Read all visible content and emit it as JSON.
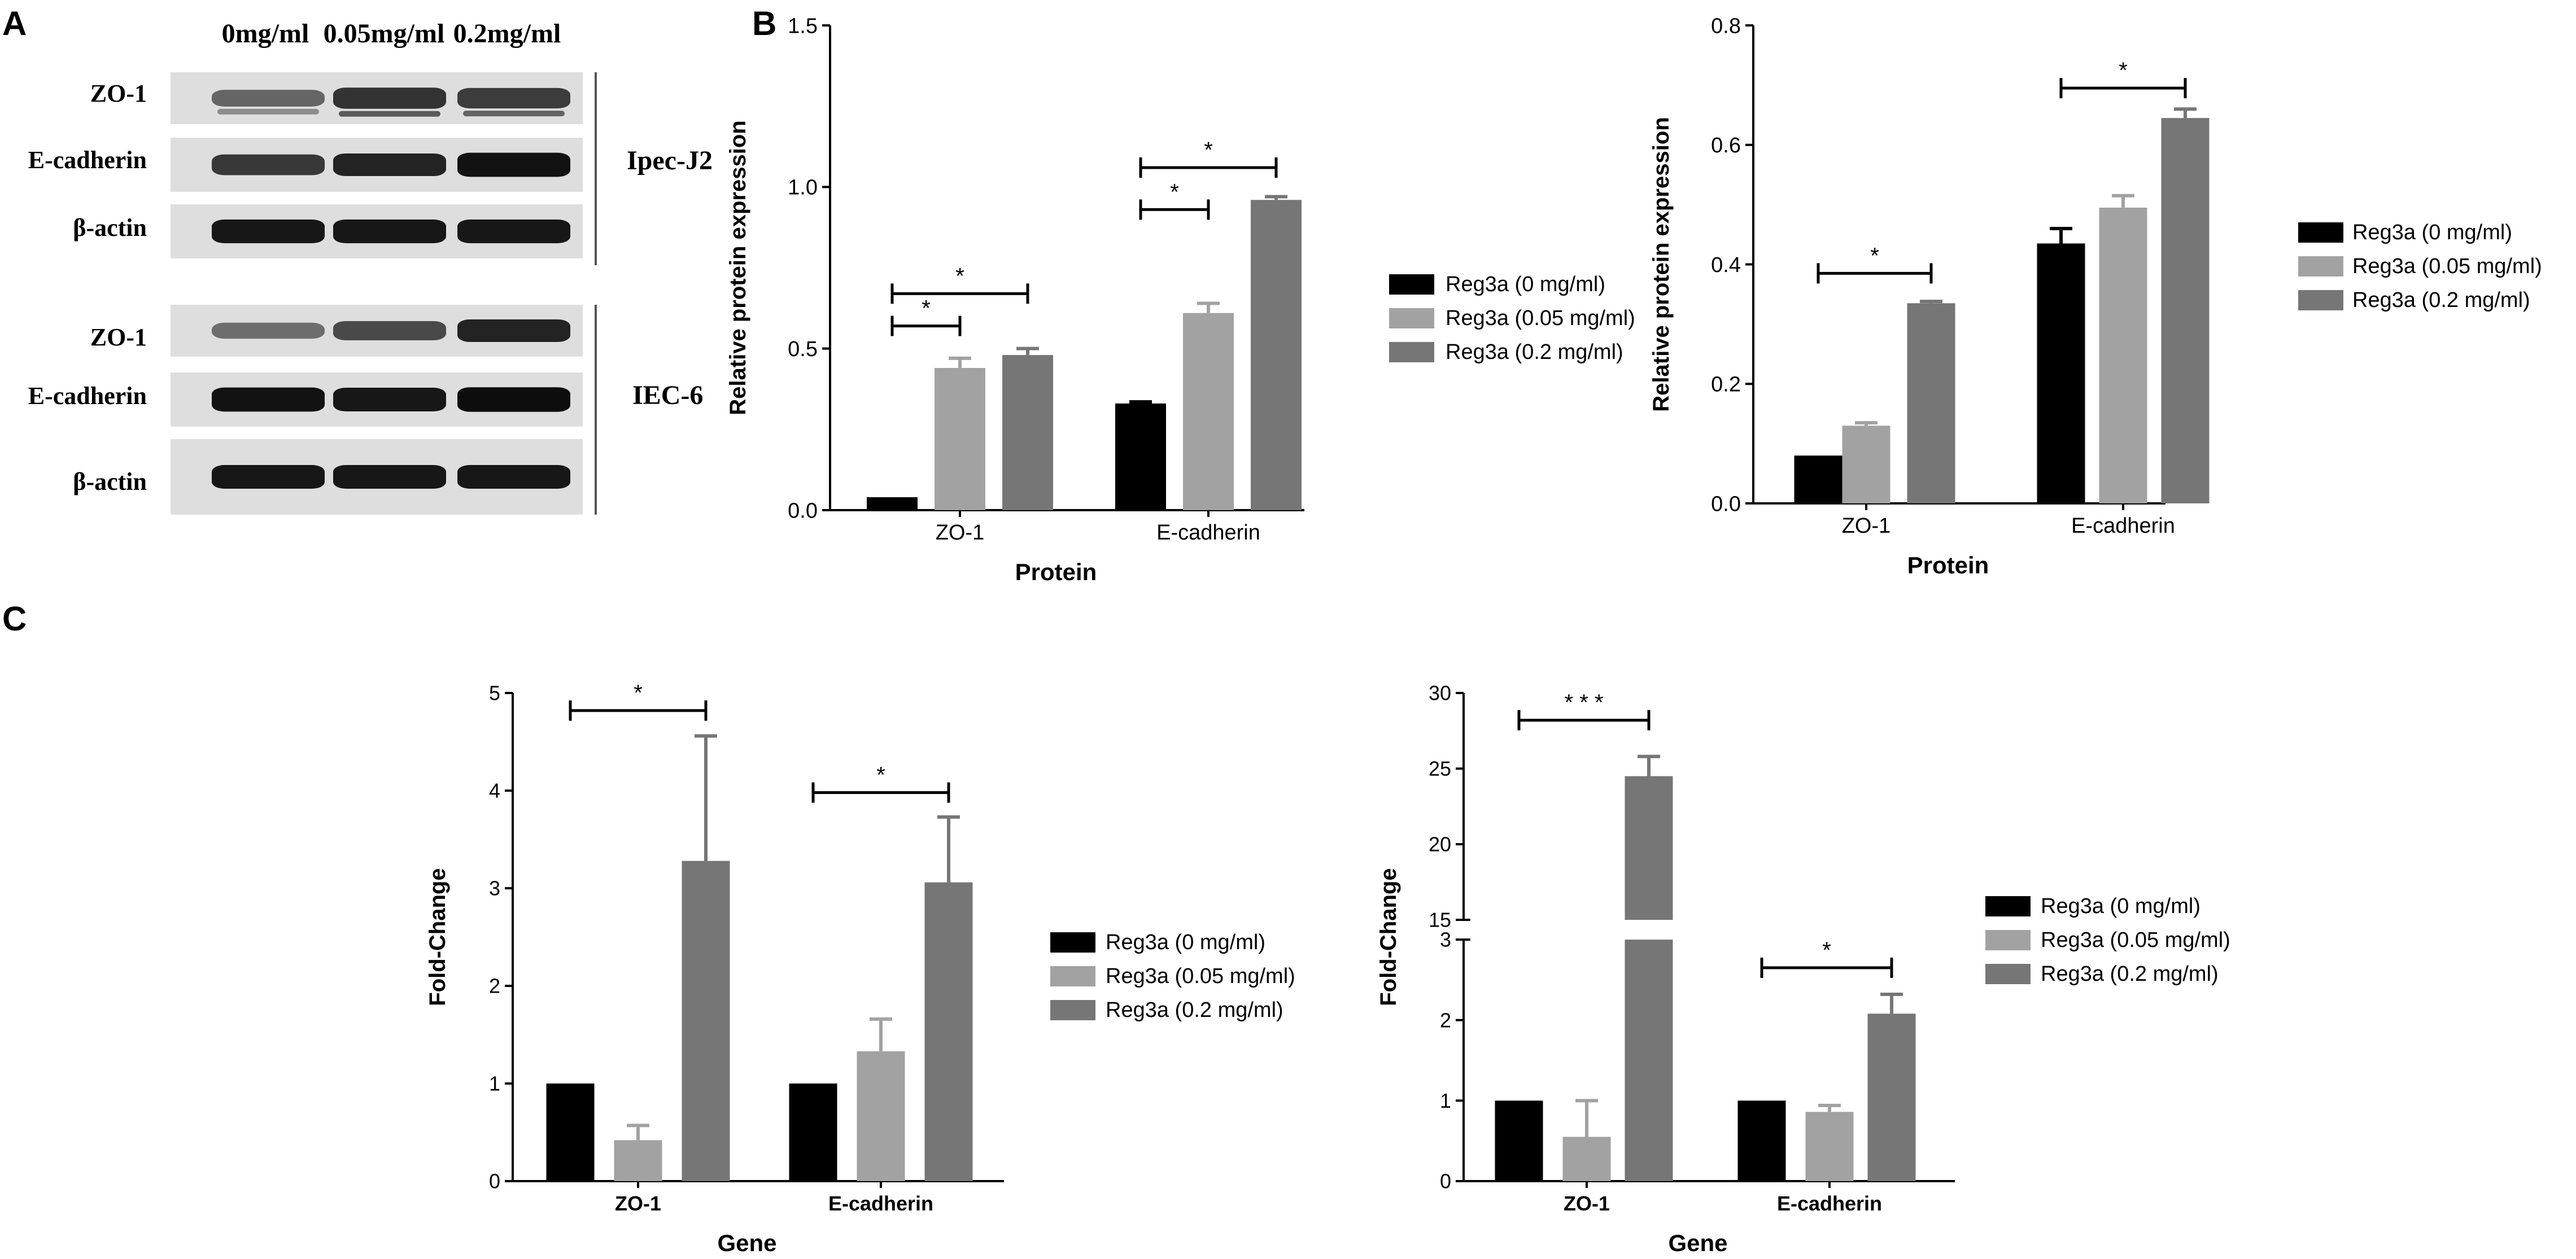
{
  "panels": {
    "A": {
      "letter": "A",
      "concentrations": [
        "0mg/ml",
        "0.05mg/ml",
        "0.2mg/ml"
      ],
      "blocks": [
        {
          "cell_line": "Ipec-J2",
          "rows": [
            {
              "label": "ZO-1",
              "intensity": [
                0.45,
                0.75,
                0.7
              ],
              "top_heavy": true
            },
            {
              "label": "E-cadherin",
              "intensity": [
                0.72,
                0.85,
                0.95
              ],
              "top_heavy": false
            },
            {
              "label": "β-actin",
              "intensity": [
                0.92,
                0.92,
                0.92
              ],
              "top_heavy": false
            }
          ]
        },
        {
          "cell_line": "IEC-6",
          "rows": [
            {
              "label": "ZO-1",
              "intensity": [
                0.4,
                0.62,
                0.85
              ],
              "top_heavy": false
            },
            {
              "label": "E-cadherin",
              "intensity": [
                0.95,
                0.92,
                0.98
              ],
              "top_heavy": false
            },
            {
              "label": "β-actin",
              "intensity": [
                0.92,
                0.92,
                0.92
              ],
              "top_heavy": false
            }
          ]
        }
      ]
    },
    "B": {
      "letter": "B"
    },
    "C": {
      "letter": "C"
    }
  },
  "legend": {
    "entries": [
      "Reg3a (0 mg/ml)",
      "Reg3a (0.05 mg/ml)",
      "Reg3a (0.2 mg/ml)"
    ]
  },
  "colors": {
    "series": [
      "#000000",
      "#a2a2a2",
      "#767676"
    ],
    "axis": "#000000"
  },
  "chart_data": [
    {
      "id": "B-left",
      "type": "bar",
      "title": "",
      "xlabel": "Protein",
      "ylabel": "Relative protein expression",
      "categories": [
        "ZO-1",
        "E-cadherin"
      ],
      "ylim": [
        0,
        1.5
      ],
      "yticks": [
        0.0,
        0.5,
        1.0,
        1.5
      ],
      "ytick_labels": [
        "0.0",
        "0.5",
        "1.0",
        "1.5"
      ],
      "series": [
        {
          "name": "Reg3a (0 mg/ml)",
          "values": [
            0.04,
            0.33
          ],
          "errors": [
            0.0,
            0.005
          ]
        },
        {
          "name": "Reg3a (0.05 mg/ml)",
          "values": [
            0.44,
            0.61
          ],
          "errors": [
            0.03,
            0.03
          ]
        },
        {
          "name": "Reg3a (0.2 mg/ml)",
          "values": [
            0.48,
            0.96
          ],
          "errors": [
            0.02,
            0.01
          ]
        }
      ],
      "significance": [
        {
          "category": 0,
          "from": 0,
          "to": 1,
          "value": 0.57,
          "label": "*"
        },
        {
          "category": 0,
          "from": 0,
          "to": 2,
          "value": 0.67,
          "label": "*"
        },
        {
          "category": 1,
          "from": 0,
          "to": 1,
          "value": 0.93,
          "label": "*"
        },
        {
          "category": 1,
          "from": 0,
          "to": 2,
          "value": 1.06,
          "label": "*"
        }
      ]
    },
    {
      "id": "B-right",
      "type": "bar",
      "title": "",
      "xlabel": "Protein",
      "ylabel": "Relative protein expression",
      "categories": [
        "ZO-1",
        "E-cadherin"
      ],
      "ylim": [
        0,
        0.8
      ],
      "yticks": [
        0.0,
        0.2,
        0.4,
        0.6,
        0.8
      ],
      "ytick_labels": [
        "0.0",
        "0.2",
        "0.4",
        "0.6",
        "0.8"
      ],
      "series": [
        {
          "name": "Reg3a (0 mg/ml)",
          "values": [
            0.08,
            0.435
          ],
          "errors": [
            0.0,
            0.025
          ]
        },
        {
          "name": "Reg3a (0.05 mg/ml)",
          "values": [
            0.13,
            0.495
          ],
          "errors": [
            0.005,
            0.02
          ]
        },
        {
          "name": "Reg3a (0.2 mg/ml)",
          "values": [
            0.335,
            0.645
          ],
          "errors": [
            0.003,
            0.015
          ]
        }
      ],
      "significance": [
        {
          "category": 0,
          "from": 0,
          "to": 2,
          "value": 0.385,
          "label": "*"
        },
        {
          "category": 1,
          "from": 0,
          "to": 2,
          "value": 0.695,
          "label": "*"
        }
      ]
    },
    {
      "id": "C-left",
      "type": "bar",
      "title": "",
      "xlabel": "Gene",
      "ylabel": "Fold-Change",
      "categories": [
        "ZO-1",
        "E-cadherin"
      ],
      "ylim": [
        0,
        5
      ],
      "yticks": [
        0,
        1,
        2,
        3,
        4,
        5
      ],
      "ytick_labels": [
        "0",
        "1",
        "2",
        "3",
        "4",
        "5"
      ],
      "series": [
        {
          "name": "Reg3a (0 mg/ml)",
          "values": [
            1.0,
            1.0
          ],
          "errors": [
            0.0,
            0.0
          ]
        },
        {
          "name": "Reg3a (0.05 mg/ml)",
          "values": [
            0.42,
            1.33
          ],
          "errors": [
            0.15,
            0.33
          ]
        },
        {
          "name": "Reg3a (0.2 mg/ml)",
          "values": [
            3.28,
            3.06
          ],
          "errors": [
            1.28,
            0.67
          ]
        }
      ],
      "significance": [
        {
          "category": 0,
          "from": 0,
          "to": 2,
          "value": 4.82,
          "label": "*"
        },
        {
          "category": 1,
          "from": 0,
          "to": 2,
          "value": 3.98,
          "label": "*"
        }
      ]
    },
    {
      "id": "C-right",
      "type": "bar",
      "title": "",
      "xlabel": "Gene",
      "ylabel": "Fold-Change",
      "categories": [
        "ZO-1",
        "E-cadherin"
      ],
      "ylim": [
        0,
        30
      ],
      "axis_break": [
        3,
        15
      ],
      "yticks": [
        0,
        1,
        2,
        3,
        15,
        20,
        25,
        30
      ],
      "ytick_labels": [
        "0",
        "1",
        "2",
        "3",
        "15",
        "20",
        "25",
        "30"
      ],
      "series": [
        {
          "name": "Reg3a (0 mg/ml)",
          "values": [
            1.0,
            1.0
          ],
          "errors": [
            0.0,
            0.0
          ]
        },
        {
          "name": "Reg3a (0.05 mg/ml)",
          "values": [
            0.55,
            0.86
          ],
          "errors": [
            0.45,
            0.08
          ]
        },
        {
          "name": "Reg3a (0.2 mg/ml)",
          "values": [
            24.5,
            2.08
          ],
          "errors": [
            1.3,
            0.24
          ]
        }
      ],
      "significance": [
        {
          "category": 0,
          "from": 0,
          "to": 2,
          "value": 28.2,
          "label": "* * *"
        },
        {
          "category": 1,
          "from": 0,
          "to": 2,
          "value": 2.65,
          "label": "*"
        }
      ]
    }
  ]
}
